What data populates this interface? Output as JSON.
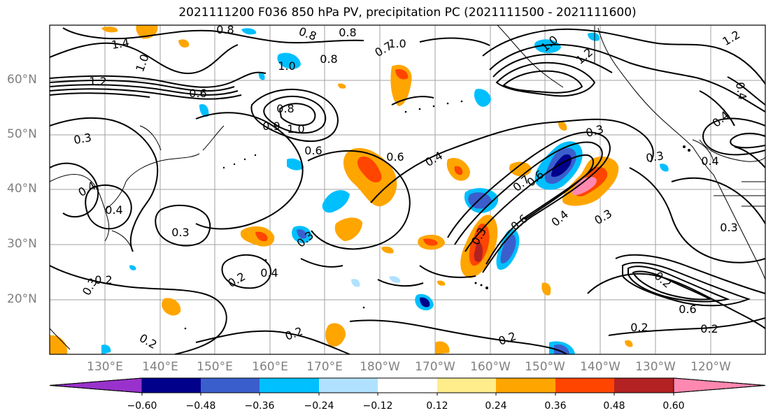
{
  "title": "2021111200 F036 850 hPa PV, precipitation PC (2021111500 - 2021111600)",
  "lat_labels": [
    "60°N",
    "50°N",
    "40°N",
    "30°N",
    "20°N"
  ],
  "lon_labels": [
    "130°E",
    "140°E",
    "150°E",
    "160°E",
    "170°E",
    "180°W",
    "170°W",
    "160°W",
    "150°W",
    "140°W",
    "130°W",
    "120°W"
  ],
  "colorbar": {
    "tick_labels": [
      "−0.60",
      "−0.48",
      "−0.36",
      "−0.24",
      "−0.12",
      "0.12",
      "0.24",
      "0.36",
      "0.48",
      "0.60"
    ],
    "colors": [
      "#9932cc",
      "#00008b",
      "#3a5fcd",
      "#00bfff",
      "#b0e2ff",
      "#ffffff",
      "#ffec8b",
      "#ffa500",
      "#ff4500",
      "#b22222",
      "#ff88b0"
    ]
  },
  "contour_labels": [
    "1.4",
    "0.8",
    "0.8",
    "0.8",
    "1.0",
    "1.0",
    "0.8",
    "1.2",
    "1.0",
    "0.7",
    "1.2",
    "1.0",
    "1.2",
    "0.6",
    "0.8",
    "0.9",
    "1.0",
    "0.3",
    "0.6",
    "0.6",
    "0.4",
    "0.3",
    "0.3",
    "0.4",
    "0.4",
    "0.3",
    "0.6",
    "0.7",
    "0.4",
    "0.3",
    "0.6",
    "0.4",
    "0.3",
    "0.3",
    "0.2",
    "0.3",
    "0.2",
    "0.4",
    "0.3",
    "0.2",
    "0.4",
    "0.4",
    "0.2",
    "0.2",
    "0.2",
    "0.6",
    "0.2",
    "0.2"
  ]
}
